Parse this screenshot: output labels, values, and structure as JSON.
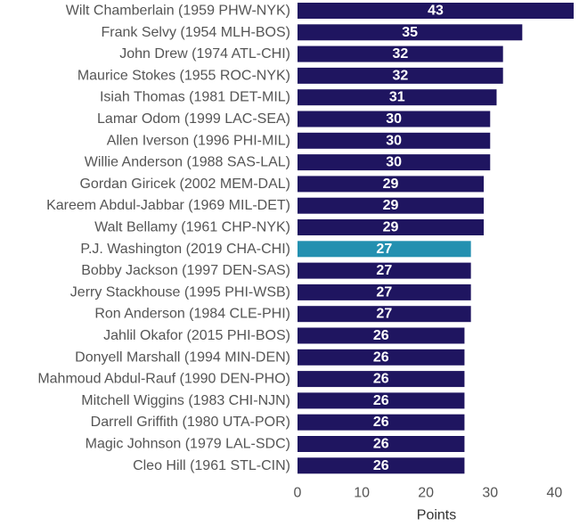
{
  "chart_data": {
    "type": "bar",
    "orientation": "horizontal",
    "categories": [
      "Wilt Chamberlain (1959 PHW-NYK)",
      "Frank Selvy (1954 MLH-BOS)",
      "John Drew (1974 ATL-CHI)",
      "Maurice Stokes (1955 ROC-NYK)",
      "Isiah Thomas (1981 DET-MIL)",
      "Lamar Odom (1999 LAC-SEA)",
      "Allen Iverson (1996 PHI-MIL)",
      "Willie Anderson (1988 SAS-LAL)",
      "Gordan Giricek (2002 MEM-DAL)",
      "Kareem Abdul-Jabbar (1969 MIL-DET)",
      "Walt Bellamy (1961 CHP-NYK)",
      "P.J. Washington (2019 CHA-CHI)",
      "Bobby Jackson (1997 DEN-SAS)",
      "Jerry Stackhouse (1995 PHI-WSB)",
      "Ron Anderson (1984 CLE-PHI)",
      "Jahlil Okafor (2015 PHI-BOS)",
      "Donyell Marshall (1994 MIN-DEN)",
      "Mahmoud Abdul-Rauf (1990 DEN-PHO)",
      "Mitchell Wiggins (1983 CHI-NJN)",
      "Darrell Griffith (1980 UTA-POR)",
      "Magic Johnson (1979 LAL-SDC)",
      "Cleo Hill (1961 STL-CIN)"
    ],
    "values": [
      43,
      35,
      32,
      32,
      31,
      30,
      30,
      30,
      29,
      29,
      29,
      27,
      27,
      27,
      27,
      26,
      26,
      26,
      26,
      26,
      26,
      26
    ],
    "value_labels": [
      "43",
      "35",
      "32",
      "32",
      "31",
      "30",
      "30",
      "30",
      "29",
      "29",
      "29",
      "27",
      "27",
      "27",
      "27",
      "26",
      "26",
      "26",
      "26",
      "26",
      "26",
      "26"
    ],
    "highlight_index": 11,
    "colors": {
      "bar": "#1f1560",
      "highlight": "#2390b0"
    },
    "title": "",
    "xlabel": "Points",
    "ylabel": "",
    "xlim": [
      0,
      43
    ],
    "xticks": [
      0,
      10,
      20,
      30,
      40
    ],
    "xtick_labels": [
      "0",
      "10",
      "20",
      "30",
      "40"
    ],
    "grid": false,
    "legend": "none"
  }
}
